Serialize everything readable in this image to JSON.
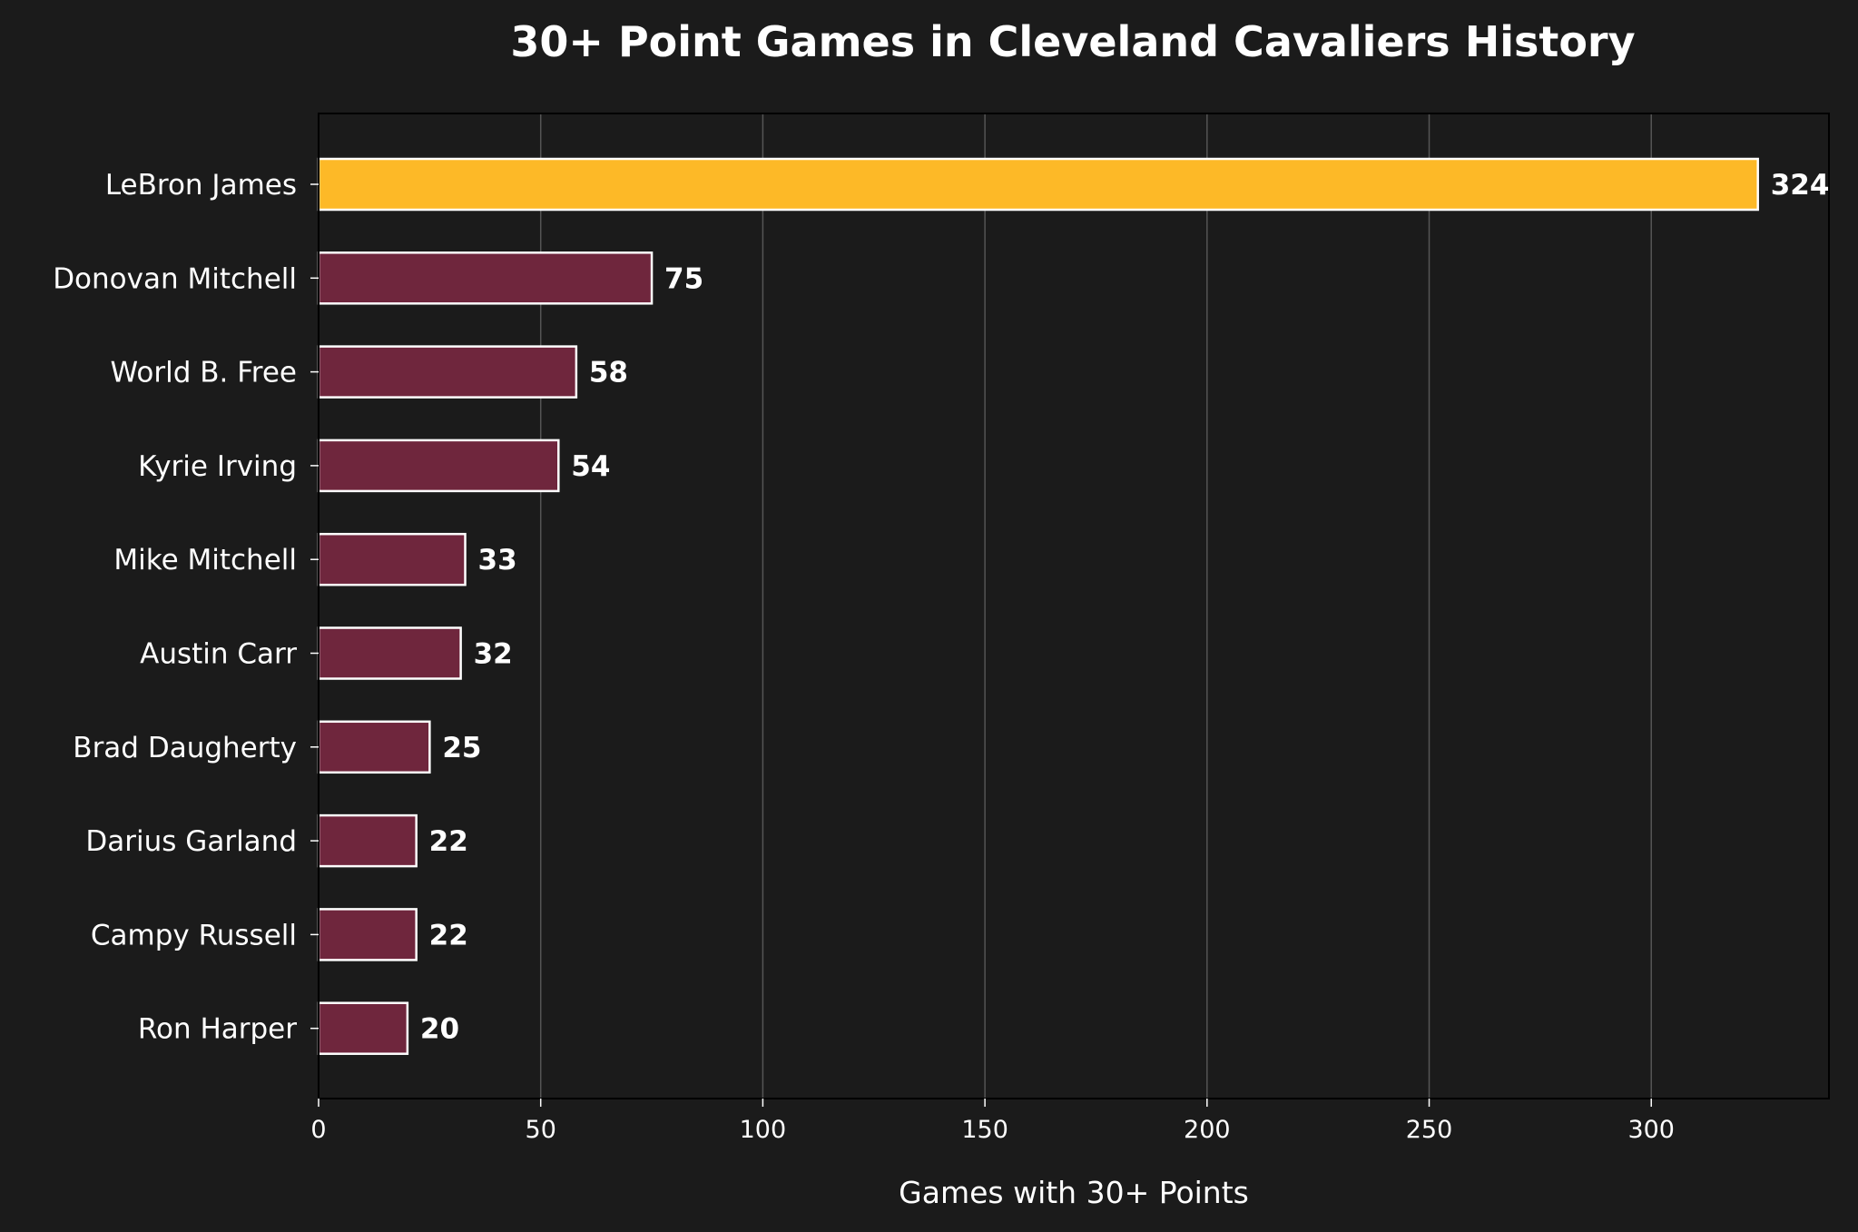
{
  "chart_data": {
    "type": "bar",
    "orientation": "horizontal",
    "title": "30+ Point Games in Cleveland Cavaliers History",
    "xlabel": "Games with 30+ Points",
    "ylabel": "",
    "xlim": [
      0,
      340
    ],
    "xticks": [
      0,
      50,
      100,
      150,
      200,
      250,
      300
    ],
    "grid": "x",
    "categories": [
      "LeBron James",
      "Donovan Mitchell",
      "World B. Free",
      "Kyrie Irving",
      "Mike Mitchell",
      "Austin Carr",
      "Brad Daugherty",
      "Darius Garland",
      "Campy Russell",
      "Ron Harper"
    ],
    "values": [
      324,
      75,
      58,
      54,
      33,
      32,
      25,
      22,
      22,
      20
    ],
    "value_labels": [
      "324",
      "75",
      "58",
      "54",
      "33",
      "32",
      "25",
      "22",
      "22",
      "20"
    ],
    "highlight_index": 0
  },
  "colors": {
    "background": "#1b1b1b",
    "highlight_bar": "#FDB927",
    "bar": "#6F263D",
    "bar_edge": "#ffffff",
    "grid": "#555555",
    "text": "#ffffff",
    "axis": "#000000"
  }
}
